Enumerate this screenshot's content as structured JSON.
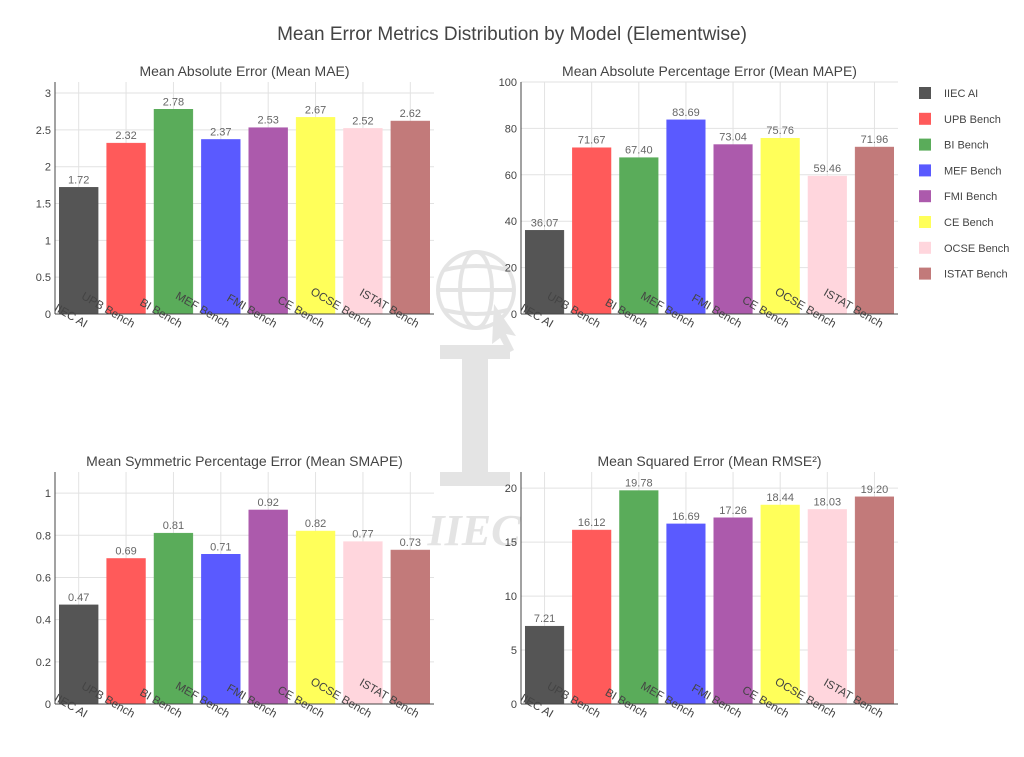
{
  "title": "Mean Error Metrics Distribution by Model (Elementwise)",
  "watermark": {
    "text": "IIEC",
    "icon": "globe-cursor-icon"
  },
  "models": [
    "IIEC AI",
    "UPB Bench",
    "BI Bench",
    "MEF Bench",
    "FMI Bench",
    "CE Bench",
    "OCSE Bench",
    "ISTAT Bench"
  ],
  "colors": [
    "#555555",
    "#ff5a5a",
    "#5aac5a",
    "#5a5aff",
    "#ac5aac",
    "#ffff5a",
    "#ffd6dd",
    "#c27a7a"
  ],
  "legend": {
    "placement": "right",
    "entries": [
      "IIEC AI",
      "UPB Bench",
      "BI Bench",
      "MEF Bench",
      "FMI Bench",
      "CE Bench",
      "OCSE Bench",
      "ISTAT Bench"
    ]
  },
  "chart_data": [
    {
      "type": "bar",
      "title": "Mean Absolute Error (Mean MAE)",
      "categories": [
        "IIEC AI",
        "UPB Bench",
        "BI Bench",
        "MEF Bench",
        "FMI Bench",
        "CE Bench",
        "OCSE Bench",
        "ISTAT Bench"
      ],
      "values": [
        1.72,
        2.32,
        2.78,
        2.37,
        2.53,
        2.67,
        2.52,
        2.62
      ],
      "labels": [
        "1.72",
        "2.32",
        "2.78",
        "2.37",
        "2.53",
        "2.67",
        "2.52",
        "2.62"
      ],
      "yticks": [
        0,
        0.5,
        1,
        1.5,
        2,
        2.5,
        3
      ],
      "ytick_labels": [
        "0",
        "0.5",
        "1",
        "1.5",
        "2",
        "2.5",
        "3"
      ],
      "ylim": [
        0,
        3.15
      ],
      "grid": true
    },
    {
      "type": "bar",
      "title": "Mean Absolute Percentage Error (Mean MAPE)",
      "categories": [
        "IIEC AI",
        "UPB Bench",
        "BI Bench",
        "MEF Bench",
        "FMI Bench",
        "CE Bench",
        "OCSE Bench",
        "ISTAT Bench"
      ],
      "values": [
        36.07,
        71.67,
        67.4,
        83.69,
        73.04,
        75.76,
        59.46,
        71.96
      ],
      "labels": [
        "36.07",
        "71.67",
        "67.40",
        "83.69",
        "73.04",
        "75.76",
        "59.46",
        "71.96"
      ],
      "yticks": [
        0,
        20,
        40,
        60,
        80,
        100
      ],
      "ytick_labels": [
        "0",
        "20",
        "40",
        "60",
        "80",
        "100"
      ],
      "ylim": [
        0,
        100
      ],
      "grid": true
    },
    {
      "type": "bar",
      "title": "Mean Symmetric Percentage Error (Mean SMAPE)",
      "categories": [
        "IIEC AI",
        "UPB Bench",
        "BI Bench",
        "MEF Bench",
        "FMI Bench",
        "CE Bench",
        "OCSE Bench",
        "ISTAT Bench"
      ],
      "values": [
        0.47,
        0.69,
        0.81,
        0.71,
        0.92,
        0.82,
        0.77,
        0.73
      ],
      "labels": [
        "0.47",
        "0.69",
        "0.81",
        "0.71",
        "0.92",
        "0.82",
        "0.77",
        "0.73"
      ],
      "yticks": [
        0,
        0.2,
        0.4,
        0.6,
        0.8,
        1
      ],
      "ytick_labels": [
        "0",
        "0.2",
        "0.4",
        "0.6",
        "0.8",
        "1"
      ],
      "ylim": [
        0,
        1.1
      ],
      "grid": true
    },
    {
      "type": "bar",
      "title": "Mean Squared Error (Mean RMSE²)",
      "categories": [
        "IIEC AI",
        "UPB Bench",
        "BI Bench",
        "MEF Bench",
        "FMI Bench",
        "CE Bench",
        "OCSE Bench",
        "ISTAT Bench"
      ],
      "values": [
        7.21,
        16.12,
        19.78,
        16.69,
        17.26,
        18.44,
        18.03,
        19.2
      ],
      "labels": [
        "7.21",
        "16.12",
        "19.78",
        "16.69",
        "17.26",
        "18.44",
        "18.03",
        "19.20"
      ],
      "yticks": [
        0,
        5,
        10,
        15,
        20
      ],
      "ytick_labels": [
        "0",
        "5",
        "10",
        "15",
        "20"
      ],
      "ylim": [
        0,
        21.5
      ],
      "grid": true
    }
  ]
}
